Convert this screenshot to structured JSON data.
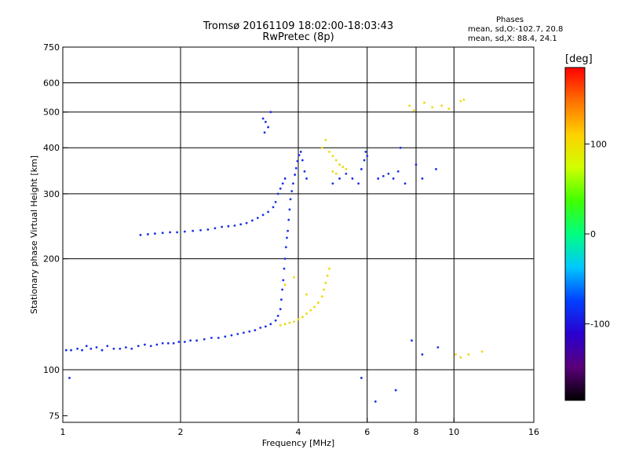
{
  "header": {
    "title": "Tromsø 20161109 18:02:00-18:03:43",
    "subtitle": "RwPretec (8p)",
    "phases_heading": "Phases",
    "phases_o": "mean, sd,O:-102.7, 20.8",
    "phases_x": "mean, sd,X:  88.4, 24.1"
  },
  "colorbar": {
    "unit": "[deg]",
    "ticks": [
      100,
      0,
      -100
    ],
    "range": [
      -185,
      185
    ],
    "colors": [
      "#000000",
      "#5a007a",
      "#2a00d0",
      "#0040ff",
      "#00c8ff",
      "#00ff80",
      "#40ff00",
      "#d0ff00",
      "#ffd000",
      "#ff7000",
      "#ff0000"
    ]
  },
  "chart_data": {
    "type": "scatter",
    "title": "Tromsø 20161109 18:02:00-18:03:43",
    "subtitle": "RwPretec (8p)",
    "xlabel": "Frequency [MHz]",
    "ylabel": "Stationary phase Virtual Height [km]",
    "x_scale": "log",
    "y_scale": "log",
    "xlim": [
      1,
      16
    ],
    "ylim": [
      72,
      750
    ],
    "x_ticks": [
      1,
      2,
      4,
      6,
      8,
      10,
      16
    ],
    "y_ticks": [
      75,
      100,
      200,
      300,
      400,
      500,
      600,
      750
    ],
    "grid_x": [
      2,
      4,
      6,
      8,
      10
    ],
    "grid_y": [
      100,
      200,
      300,
      400,
      500,
      600
    ],
    "series": [
      {
        "name": "O",
        "color": "#1a30e8",
        "points": [
          [
            1.02,
            113
          ],
          [
            1.05,
            113
          ],
          [
            1.09,
            114
          ],
          [
            1.12,
            113
          ],
          [
            1.15,
            116
          ],
          [
            1.18,
            114
          ],
          [
            1.22,
            115
          ],
          [
            1.26,
            113
          ],
          [
            1.3,
            116
          ],
          [
            1.35,
            114
          ],
          [
            1.4,
            114
          ],
          [
            1.45,
            115
          ],
          [
            1.5,
            114
          ],
          [
            1.56,
            116
          ],
          [
            1.62,
            117
          ],
          [
            1.68,
            116
          ],
          [
            1.74,
            117
          ],
          [
            1.8,
            118
          ],
          [
            1.86,
            118
          ],
          [
            1.92,
            118
          ],
          [
            1.98,
            119
          ],
          [
            2.05,
            119
          ],
          [
            2.12,
            120
          ],
          [
            2.2,
            120
          ],
          [
            2.3,
            121
          ],
          [
            2.4,
            122
          ],
          [
            2.5,
            122
          ],
          [
            2.6,
            123
          ],
          [
            2.7,
            124
          ],
          [
            2.8,
            125
          ],
          [
            2.9,
            126
          ],
          [
            3.0,
            127
          ],
          [
            3.1,
            128
          ],
          [
            3.2,
            130
          ],
          [
            3.3,
            131
          ],
          [
            3.4,
            133
          ],
          [
            3.5,
            136
          ],
          [
            3.55,
            140
          ],
          [
            3.6,
            146
          ],
          [
            3.62,
            155
          ],
          [
            3.64,
            165
          ],
          [
            3.66,
            175
          ],
          [
            3.68,
            188
          ],
          [
            3.7,
            200
          ],
          [
            3.72,
            215
          ],
          [
            3.74,
            228
          ],
          [
            3.76,
            238
          ],
          [
            3.78,
            255
          ],
          [
            3.8,
            272
          ],
          [
            3.82,
            290
          ],
          [
            3.85,
            305
          ],
          [
            3.88,
            320
          ],
          [
            3.92,
            338
          ],
          [
            3.95,
            352
          ],
          [
            3.98,
            368
          ],
          [
            4.02,
            382
          ],
          [
            4.06,
            390
          ],
          [
            4.1,
            370
          ],
          [
            4.15,
            345
          ],
          [
            4.2,
            330
          ],
          [
            1.58,
            232
          ],
          [
            1.65,
            233
          ],
          [
            1.72,
            234
          ],
          [
            1.8,
            235
          ],
          [
            1.88,
            236
          ],
          [
            1.96,
            236
          ],
          [
            2.05,
            237
          ],
          [
            2.15,
            238
          ],
          [
            2.25,
            239
          ],
          [
            2.35,
            240
          ],
          [
            2.45,
            242
          ],
          [
            2.55,
            244
          ],
          [
            2.65,
            245
          ],
          [
            2.75,
            246
          ],
          [
            2.85,
            248
          ],
          [
            2.95,
            250
          ],
          [
            3.05,
            254
          ],
          [
            3.15,
            258
          ],
          [
            3.25,
            263
          ],
          [
            3.35,
            268
          ],
          [
            3.45,
            276
          ],
          [
            3.5,
            285
          ],
          [
            3.55,
            300
          ],
          [
            3.6,
            310
          ],
          [
            3.65,
            320
          ],
          [
            3.7,
            330
          ],
          [
            3.25,
            480
          ],
          [
            3.3,
            470
          ],
          [
            3.35,
            455
          ],
          [
            3.28,
            440
          ],
          [
            3.4,
            500
          ],
          [
            4.9,
            320
          ],
          [
            5.1,
            330
          ],
          [
            5.3,
            340
          ],
          [
            5.5,
            330
          ],
          [
            5.7,
            320
          ],
          [
            5.8,
            350
          ],
          [
            5.9,
            370
          ],
          [
            5.95,
            390
          ],
          [
            6.0,
            380
          ],
          [
            6.4,
            330
          ],
          [
            6.6,
            335
          ],
          [
            6.8,
            340
          ],
          [
            7.0,
            330
          ],
          [
            7.2,
            345
          ],
          [
            7.5,
            320
          ],
          [
            8.0,
            360
          ],
          [
            8.3,
            330
          ],
          [
            9.0,
            350
          ],
          [
            7.3,
            400
          ],
          [
            7.8,
            120
          ],
          [
            8.3,
            110
          ],
          [
            9.1,
            115
          ],
          [
            7.1,
            88
          ],
          [
            6.3,
            82
          ],
          [
            5.8,
            95
          ],
          [
            1.04,
            95
          ]
        ]
      },
      {
        "name": "X",
        "color": "#f0d800",
        "points": [
          [
            3.6,
            132
          ],
          [
            3.7,
            133
          ],
          [
            3.8,
            134
          ],
          [
            3.9,
            135
          ],
          [
            4.0,
            137
          ],
          [
            4.1,
            139
          ],
          [
            4.2,
            142
          ],
          [
            4.3,
            145
          ],
          [
            4.4,
            148
          ],
          [
            4.5,
            152
          ],
          [
            4.6,
            158
          ],
          [
            4.65,
            165
          ],
          [
            4.7,
            172
          ],
          [
            4.75,
            180
          ],
          [
            4.8,
            188
          ],
          [
            4.6,
            400
          ],
          [
            4.7,
            420
          ],
          [
            4.8,
            390
          ],
          [
            4.9,
            380
          ],
          [
            5.0,
            370
          ],
          [
            5.1,
            360
          ],
          [
            5.2,
            355
          ],
          [
            5.3,
            350
          ],
          [
            4.9,
            345
          ],
          [
            5.0,
            340
          ],
          [
            7.7,
            520
          ],
          [
            7.9,
            505
          ],
          [
            8.4,
            530
          ],
          [
            8.8,
            515
          ],
          [
            9.3,
            520
          ],
          [
            9.7,
            510
          ],
          [
            10.4,
            535
          ],
          [
            10.6,
            540
          ],
          [
            10.1,
            110
          ],
          [
            10.4,
            108
          ],
          [
            10.9,
            110
          ],
          [
            11.8,
            112
          ],
          [
            3.7,
            170
          ],
          [
            3.9,
            178
          ],
          [
            4.2,
            160
          ]
        ]
      }
    ]
  }
}
